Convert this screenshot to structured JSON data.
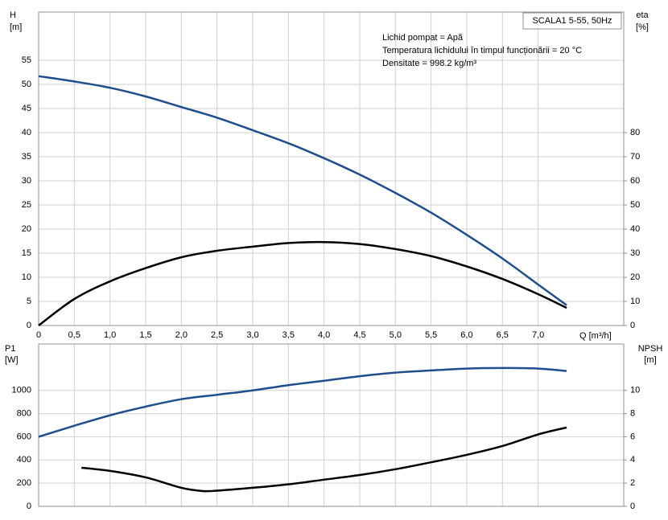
{
  "chart_data": [
    {
      "type": "line",
      "title": "SCALA1 5-55, 50Hz",
      "annotations": [
        "Lichid pompat = Apă",
        "Temperatura lichidului în timpul funcționării = 20 °C",
        "Densitate = 998.2 kg/m³"
      ],
      "y_label": [
        "H",
        "[m]"
      ],
      "y2_label": [
        "eta",
        "[%]"
      ],
      "x_label": "Q [m³/h]",
      "xlim": [
        0,
        8.2
      ],
      "xticks": [
        0,
        {
          "value": 0.5,
          "label": "0,5"
        },
        {
          "value": 1.0,
          "label": "1,0"
        },
        {
          "value": 1.5,
          "label": "1,5"
        },
        {
          "value": 2.0,
          "label": "2,0"
        },
        {
          "value": 2.5,
          "label": "2,5"
        },
        {
          "value": 3.0,
          "label": "3,0"
        },
        {
          "value": 3.5,
          "label": "3,5"
        },
        {
          "value": 4.0,
          "label": "4,0"
        },
        {
          "value": 4.5,
          "label": "4,5"
        },
        {
          "value": 5.0,
          "label": "5,0"
        },
        {
          "value": 5.5,
          "label": "5,5"
        },
        {
          "value": 6.0,
          "label": "6,0"
        },
        {
          "value": 6.5,
          "label": "6,5"
        },
        {
          "value": 7.0,
          "label": "7,0"
        }
      ],
      "ylim": [
        0,
        65
      ],
      "yticks": [
        0,
        5,
        10,
        15,
        20,
        25,
        30,
        35,
        40,
        45,
        50,
        55
      ],
      "y2lim": [
        0,
        130
      ],
      "y2ticks": [
        0,
        10,
        20,
        30,
        40,
        50,
        60,
        70,
        80
      ],
      "grid": true,
      "series": [
        {
          "color": "#1f4e8c",
          "x": [
            0,
            0.5,
            1.0,
            1.5,
            2.0,
            2.5,
            3.0,
            3.5,
            4.0,
            4.5,
            5.0,
            5.5,
            6.0,
            6.5,
            7.0,
            7.4
          ],
          "values": [
            51.7,
            50.6,
            49.3,
            47.5,
            45.3,
            43.1,
            40.5,
            37.8,
            34.7,
            31.3,
            27.5,
            23.4,
            18.8,
            13.9,
            8.5,
            4.2
          ]
        },
        {
          "color": "#000000",
          "axis": "y2",
          "x": [
            0,
            0.5,
            1.0,
            1.5,
            2.0,
            2.5,
            3.0,
            3.5,
            4.0,
            4.5,
            5.0,
            5.5,
            6.0,
            6.5,
            7.0,
            7.4
          ],
          "values": [
            0,
            11,
            18.3,
            23.8,
            28.3,
            31,
            32.7,
            34.2,
            34.6,
            33.8,
            31.7,
            28.8,
            24.5,
            19.3,
            13,
            7.3
          ]
        }
      ]
    },
    {
      "type": "line",
      "y_label": [
        "P1",
        "[W]"
      ],
      "y2_label": [
        "NPSH",
        "[m]"
      ],
      "xlim": [
        0,
        8.2
      ],
      "xticks": [
        0,
        0.5,
        1.0,
        1.5,
        2.0,
        2.5,
        3.0,
        3.5,
        4.0,
        4.5,
        5.0,
        5.5,
        6.0,
        6.5,
        7.0
      ],
      "ylim": [
        0,
        1400
      ],
      "yticks": [
        0,
        200,
        400,
        600,
        800,
        1000
      ],
      "y2lim": [
        0,
        14
      ],
      "y2ticks": [
        0,
        2,
        4,
        6,
        8,
        10
      ],
      "grid": true,
      "series": [
        {
          "color": "#1f4e8c",
          "x": [
            0,
            0.5,
            1.0,
            1.5,
            2.0,
            2.5,
            3.0,
            3.5,
            4.0,
            4.5,
            5.0,
            5.5,
            6.0,
            6.5,
            7.0,
            7.4
          ],
          "values": [
            600,
            695,
            785,
            860,
            924,
            962,
            1000,
            1045,
            1083,
            1122,
            1153,
            1172,
            1188,
            1193,
            1188,
            1167
          ]
        },
        {
          "color": "#000000",
          "axis": "y2",
          "x": [
            0.6,
            1.0,
            1.5,
            2.0,
            2.3,
            2.5,
            3.0,
            3.5,
            4.0,
            4.5,
            5.0,
            5.5,
            6.0,
            6.5,
            7.0,
            7.4
          ],
          "values": [
            3.33,
            3.06,
            2.5,
            1.6,
            1.32,
            1.35,
            1.6,
            1.9,
            2.3,
            2.7,
            3.2,
            3.8,
            4.44,
            5.2,
            6.2,
            6.8
          ]
        }
      ]
    }
  ]
}
